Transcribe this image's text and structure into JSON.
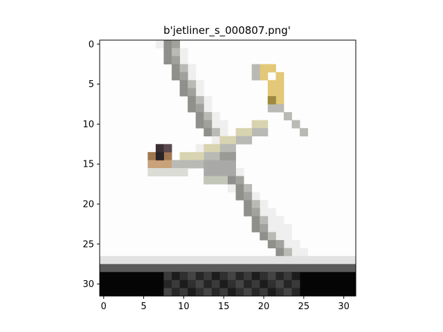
{
  "figure": {
    "title": "b'jetliner_s_000807.png'",
    "image": {
      "rows": 32,
      "cols": 32,
      "subject": "jetliner-airplane-on-runway"
    },
    "x_axis": {
      "ticks": [
        0,
        5,
        10,
        15,
        20,
        25,
        30
      ],
      "range": [
        -0.5,
        31.5
      ]
    },
    "y_axis": {
      "ticks": [
        0,
        5,
        10,
        15,
        20,
        25,
        30
      ],
      "range": [
        -0.5,
        31.5
      ],
      "inverted": true
    },
    "colors": {
      "background": "#ffffff",
      "sky": "#fdfdfd",
      "plane_gray": "#8f8f8c",
      "plane_light": "#b9b9b5",
      "tail_yellow": "#e3c878",
      "nose_brown": "#a07850",
      "cockpit_dark": "#3a3034",
      "runway_light": "#e2e2e2",
      "runway_mid": "#5a5a5a",
      "runway_dark": "#050505"
    }
  }
}
